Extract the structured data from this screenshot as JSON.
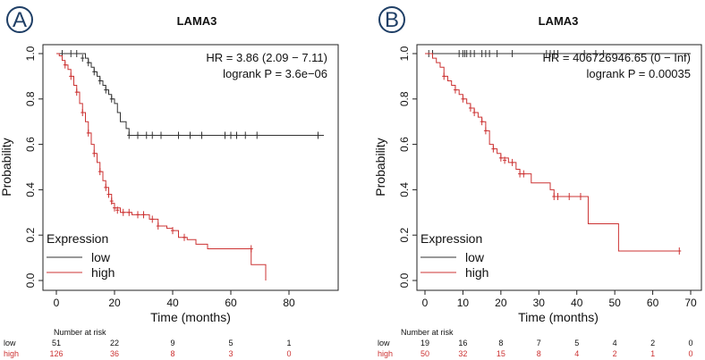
{
  "chart_data": [
    {
      "type": "line",
      "panel_label": "A",
      "title": "LAMA3",
      "xlabel": "Time (months)",
      "ylabel": "Probability",
      "xlim": [
        0,
        92
      ],
      "ylim": [
        0,
        1
      ],
      "xticks": [
        0,
        20,
        40,
        60,
        80
      ],
      "yticks": [
        "0.0",
        "0.2",
        "0.4",
        "0.6",
        "0.8",
        "1.0"
      ],
      "hr_text": "HR = 3.86 (2.09 − 7.11)",
      "logrank_text": "logrank P = 3.6e−06",
      "legend": {
        "title": "Expression",
        "placement": "bottom-left",
        "entries": [
          "low",
          "high"
        ]
      },
      "colors": {
        "low": "#333333",
        "high": "#cc3333"
      },
      "series": [
        {
          "name": "low",
          "steps": [
            [
              0,
              1
            ],
            [
              8,
              1
            ],
            [
              10,
              0.98
            ],
            [
              11,
              0.96
            ],
            [
              12,
              0.94
            ],
            [
              13,
              0.92
            ],
            [
              14,
              0.9
            ],
            [
              15,
              0.88
            ],
            [
              16,
              0.86
            ],
            [
              17,
              0.84
            ],
            [
              18,
              0.82
            ],
            [
              19,
              0.8
            ],
            [
              20,
              0.78
            ],
            [
              21,
              0.74
            ],
            [
              22,
              0.7
            ],
            [
              24,
              0.67
            ],
            [
              25,
              0.64
            ],
            [
              92,
              0.64
            ]
          ],
          "censor": [
            [
              2,
              1
            ],
            [
              5,
              1
            ],
            [
              7,
              1
            ],
            [
              9,
              0.98
            ],
            [
              11,
              0.96
            ],
            [
              13,
              0.92
            ],
            [
              15,
              0.88
            ],
            [
              17,
              0.84
            ],
            [
              19,
              0.8
            ],
            [
              25,
              0.64
            ],
            [
              28,
              0.64
            ],
            [
              31,
              0.64
            ],
            [
              33,
              0.64
            ],
            [
              36,
              0.64
            ],
            [
              42,
              0.64
            ],
            [
              46,
              0.64
            ],
            [
              50,
              0.64
            ],
            [
              58,
              0.64
            ],
            [
              60,
              0.64
            ],
            [
              62,
              0.64
            ],
            [
              65,
              0.64
            ],
            [
              69,
              0.64
            ],
            [
              90,
              0.64
            ]
          ]
        },
        {
          "name": "high",
          "steps": [
            [
              0,
              1
            ],
            [
              1,
              0.99
            ],
            [
              2,
              0.97
            ],
            [
              3,
              0.95
            ],
            [
              4,
              0.93
            ],
            [
              5,
              0.9
            ],
            [
              6,
              0.86
            ],
            [
              7,
              0.83
            ],
            [
              8,
              0.78
            ],
            [
              9,
              0.74
            ],
            [
              10,
              0.7
            ],
            [
              11,
              0.65
            ],
            [
              12,
              0.6
            ],
            [
              13,
              0.56
            ],
            [
              14,
              0.52
            ],
            [
              15,
              0.48
            ],
            [
              16,
              0.44
            ],
            [
              17,
              0.41
            ],
            [
              18,
              0.38
            ],
            [
              19,
              0.34
            ],
            [
              20,
              0.32
            ],
            [
              22,
              0.3
            ],
            [
              26,
              0.29
            ],
            [
              32,
              0.27
            ],
            [
              35,
              0.24
            ],
            [
              38,
              0.23
            ],
            [
              40,
              0.22
            ],
            [
              42,
              0.19
            ],
            [
              45,
              0.18
            ],
            [
              48,
              0.16
            ],
            [
              52,
              0.14
            ],
            [
              66,
              0.14
            ],
            [
              67,
              0.07
            ],
            [
              72,
              0.07
            ],
            [
              72,
              0
            ]
          ],
          "censor": [
            [
              3,
              0.95
            ],
            [
              5,
              0.9
            ],
            [
              7,
              0.83
            ],
            [
              9,
              0.74
            ],
            [
              11,
              0.65
            ],
            [
              13,
              0.56
            ],
            [
              15,
              0.48
            ],
            [
              17,
              0.41
            ],
            [
              18,
              0.38
            ],
            [
              19,
              0.35
            ],
            [
              20,
              0.32
            ],
            [
              21,
              0.31
            ],
            [
              23,
              0.3
            ],
            [
              25,
              0.3
            ],
            [
              28,
              0.29
            ],
            [
              30,
              0.29
            ],
            [
              33,
              0.27
            ],
            [
              35,
              0.24
            ],
            [
              40,
              0.22
            ],
            [
              44,
              0.19
            ],
            [
              67,
              0.14
            ]
          ]
        }
      ],
      "risk_table": {
        "header": "Number at risk",
        "times": [
          0,
          20,
          40,
          60,
          80
        ],
        "rows": [
          {
            "label": "low",
            "values": [
              "51",
              "22",
              "9",
              "5",
              "1"
            ]
          },
          {
            "label": "high",
            "values": [
              "126",
              "36",
              "8",
              "3",
              "0"
            ]
          }
        ]
      }
    },
    {
      "type": "line",
      "panel_label": "B",
      "title": "LAMA3",
      "xlabel": "Time (months)",
      "ylabel": "Probability",
      "xlim": [
        0,
        70
      ],
      "ylim": [
        0,
        1
      ],
      "xticks": [
        0,
        10,
        20,
        30,
        40,
        50,
        60,
        70
      ],
      "yticks": [
        "0.0",
        "0.2",
        "0.4",
        "0.6",
        "0.8",
        "1.0"
      ],
      "hr_text": "HR = 406726946.65 (0 − Inf)",
      "logrank_text": "logrank P = 0.00035",
      "legend": {
        "title": "Expression",
        "placement": "bottom-left",
        "entries": [
          "low",
          "high"
        ]
      },
      "colors": {
        "low": "#333333",
        "high": "#cc3333"
      },
      "series": [
        {
          "name": "low",
          "steps": [
            [
              0,
              1
            ],
            [
              70,
              1
            ]
          ],
          "censor": [
            [
              1,
              1
            ],
            [
              2,
              1
            ],
            [
              9,
              1
            ],
            [
              10,
              1
            ],
            [
              10.5,
              1
            ],
            [
              11,
              1
            ],
            [
              12,
              1
            ],
            [
              13,
              1
            ],
            [
              15,
              1
            ],
            [
              16,
              1
            ],
            [
              17,
              1
            ],
            [
              19,
              1
            ],
            [
              23,
              1
            ],
            [
              32,
              1
            ],
            [
              33,
              1
            ],
            [
              34,
              1
            ],
            [
              35,
              1
            ],
            [
              42,
              1
            ],
            [
              45,
              1
            ],
            [
              47,
              1
            ]
          ]
        },
        {
          "name": "high",
          "steps": [
            [
              0,
              1
            ],
            [
              2,
              0.98
            ],
            [
              3,
              0.96
            ],
            [
              4,
              0.94
            ],
            [
              5,
              0.9
            ],
            [
              6,
              0.88
            ],
            [
              7,
              0.86
            ],
            [
              8,
              0.84
            ],
            [
              9,
              0.82
            ],
            [
              10,
              0.8
            ],
            [
              11,
              0.78
            ],
            [
              12,
              0.76
            ],
            [
              13,
              0.74
            ],
            [
              14,
              0.72
            ],
            [
              15,
              0.7
            ],
            [
              16,
              0.66
            ],
            [
              17,
              0.6
            ],
            [
              18,
              0.58
            ],
            [
              19,
              0.56
            ],
            [
              20,
              0.54
            ],
            [
              22,
              0.52
            ],
            [
              24,
              0.49
            ],
            [
              25,
              0.47
            ],
            [
              28,
              0.43
            ],
            [
              33,
              0.4
            ],
            [
              34,
              0.37
            ],
            [
              42,
              0.37
            ],
            [
              43,
              0.25
            ],
            [
              50,
              0.25
            ],
            [
              51,
              0.13
            ],
            [
              67,
              0.13
            ]
          ],
          "censor": [
            [
              5,
              0.9
            ],
            [
              8,
              0.84
            ],
            [
              10,
              0.8
            ],
            [
              12,
              0.76
            ],
            [
              13,
              0.74
            ],
            [
              15,
              0.7
            ],
            [
              16,
              0.66
            ],
            [
              18,
              0.58
            ],
            [
              20,
              0.54
            ],
            [
              21,
              0.53
            ],
            [
              23,
              0.52
            ],
            [
              25,
              0.47
            ],
            [
              26,
              0.47
            ],
            [
              34,
              0.37
            ],
            [
              35,
              0.37
            ],
            [
              38,
              0.37
            ],
            [
              41,
              0.37
            ],
            [
              67,
              0.13
            ]
          ]
        }
      ],
      "risk_table": {
        "header": "Number at risk",
        "times": [
          0,
          10,
          20,
          30,
          40,
          50,
          60,
          70
        ],
        "rows": [
          {
            "label": "low",
            "values": [
              "19",
              "16",
              "8",
              "7",
              "5",
              "4",
              "2",
              "0"
            ]
          },
          {
            "label": "high",
            "values": [
              "50",
              "32",
              "15",
              "8",
              "4",
              "2",
              "1",
              "0"
            ]
          }
        ]
      }
    }
  ]
}
